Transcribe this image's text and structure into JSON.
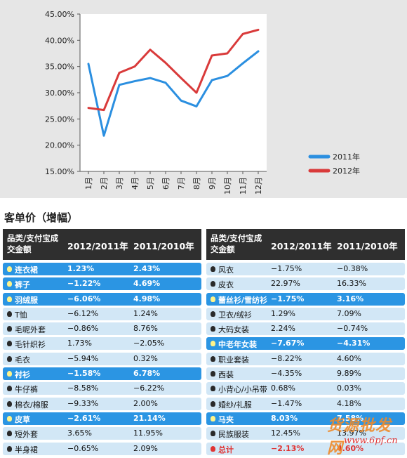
{
  "chart_data": {
    "type": "line",
    "x": [
      "1月",
      "2月",
      "3月",
      "4月",
      "5月",
      "6月",
      "7月",
      "8月",
      "9月",
      "10月",
      "11月",
      "12月"
    ],
    "series": [
      {
        "name": "2011年",
        "color": "#2b8fe0",
        "values": [
          35.5,
          21.8,
          31.5,
          32.2,
          32.8,
          31.9,
          28.5,
          27.4,
          32.4,
          33.2,
          35.6,
          37.9
        ]
      },
      {
        "name": "2012年",
        "color": "#d93a3a",
        "values": [
          27.1,
          26.7,
          33.8,
          35.0,
          38.2,
          35.7,
          32.8,
          30.0,
          37.1,
          37.5,
          41.2,
          42.0
        ]
      }
    ],
    "yticks": [
      "15.00%",
      "20.00%",
      "25.00%",
      "30.00%",
      "35.00%",
      "40.00%",
      "45.00%"
    ],
    "ylim": [
      15,
      45
    ],
    "legend": "bottom-right"
  },
  "section_title": "客单价（增幅）",
  "headers": {
    "category": "品类/支付宝成交金额",
    "col1": "2012/2011年",
    "col2": "2011/2010年"
  },
  "left_rows": [
    {
      "name": "连衣裙",
      "v1": "1.23%",
      "v2": "2.43%",
      "hl": true
    },
    {
      "name": "裤子",
      "v1": "−1.22%",
      "v2": "4.69%",
      "hl": true
    },
    {
      "name": "羽绒服",
      "v1": "−6.06%",
      "v2": "4.98%",
      "hl": true
    },
    {
      "name": "T恤",
      "v1": "−6.12%",
      "v2": "1.24%",
      "hl": false
    },
    {
      "name": "毛呢外套",
      "v1": "−0.86%",
      "v2": "8.76%",
      "hl": false
    },
    {
      "name": "毛针织衫",
      "v1": "1.73%",
      "v2": "−2.05%",
      "hl": false
    },
    {
      "name": "毛衣",
      "v1": "−5.94%",
      "v2": "0.32%",
      "hl": false
    },
    {
      "name": "衬衫",
      "v1": "−1.58%",
      "v2": "6.78%",
      "hl": true
    },
    {
      "name": "牛仔裤",
      "v1": "−8.58%",
      "v2": "−6.22%",
      "hl": false
    },
    {
      "name": "棉衣/棉服",
      "v1": "−9.33%",
      "v2": "2.00%",
      "hl": false
    },
    {
      "name": "皮草",
      "v1": "−2.61%",
      "v2": "21.14%",
      "hl": true
    },
    {
      "name": "短外套",
      "v1": "3.65%",
      "v2": "11.95%",
      "hl": false
    },
    {
      "name": "半身裙",
      "v1": "−0.65%",
      "v2": "2.09%",
      "hl": false
    }
  ],
  "right_rows": [
    {
      "name": "风衣",
      "v1": "−1.75%",
      "v2": "−0.38%",
      "hl": false
    },
    {
      "name": "皮衣",
      "v1": "22.97%",
      "v2": "16.33%",
      "hl": false
    },
    {
      "name": "蕾丝衫/雪纺衫",
      "v1": "−1.75%",
      "v2": "3.16%",
      "hl": true
    },
    {
      "name": "卫衣/绒衫",
      "v1": "1.29%",
      "v2": "7.09%",
      "hl": false
    },
    {
      "name": "大码女装",
      "v1": "2.24%",
      "v2": "−0.74%",
      "hl": false
    },
    {
      "name": "中老年女装",
      "v1": "−7.67%",
      "v2": "−4.31%",
      "hl": true
    },
    {
      "name": "职业套装",
      "v1": "−8.22%",
      "v2": "4.60%",
      "hl": false
    },
    {
      "name": "西装",
      "v1": "−4.35%",
      "v2": "9.89%",
      "hl": false
    },
    {
      "name": "小背心/小吊带",
      "v1": "0.68%",
      "v2": "0.03%",
      "hl": false
    },
    {
      "name": "婚纱/礼服",
      "v1": "−1.47%",
      "v2": "4.18%",
      "hl": false
    },
    {
      "name": "马夹",
      "v1": "8.03%",
      "v2": "7.58%",
      "hl": true
    },
    {
      "name": "民族服装",
      "v1": "12.45%",
      "v2": "13.97%",
      "hl": false
    },
    {
      "name": "总计",
      "v1": "−2.13%",
      "v2": "4.60%",
      "hl": false,
      "total": true
    }
  ],
  "watermark": "货源批发网",
  "watermark_url": "www.6pf.cn"
}
